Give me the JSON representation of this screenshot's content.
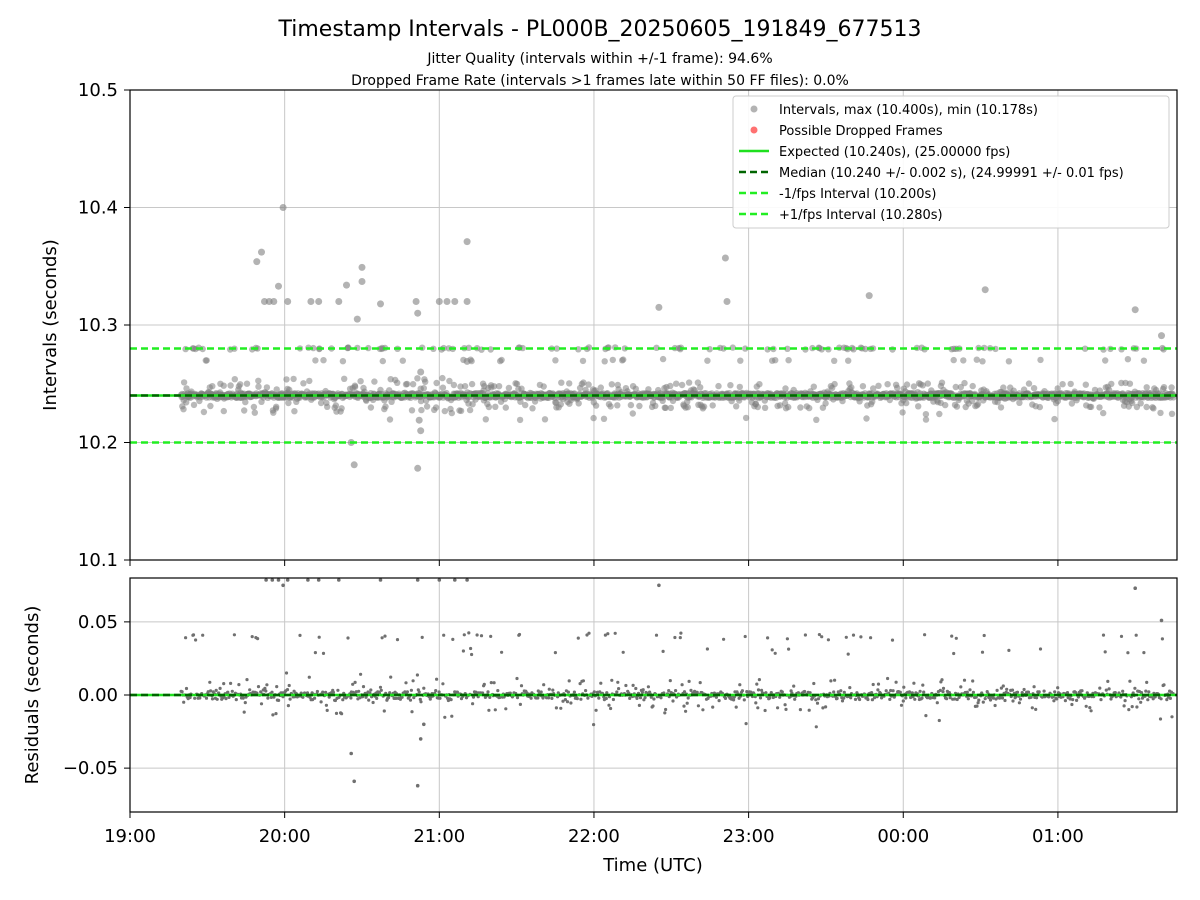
{
  "colors": {
    "intervals": "#808080",
    "dropped": "#ff4d4d",
    "expected": "#1fe01f",
    "median": "#006400",
    "fps_interval": "#22ee22",
    "grid": "#c8c8c8"
  },
  "chart_data": [
    {
      "type": "scatter",
      "title": "Timestamp Intervals - PL000B_20250605_191849_677513",
      "subtitle_lines": [
        "Jitter Quality (intervals within +/-1 frame): 94.6%",
        "Dropped Frame Rate (intervals >1 frames late within 50 FF files): 0.0%"
      ],
      "ylabel": "Intervals (seconds)",
      "ylim": [
        10.1,
        10.5
      ],
      "yticks": [
        "10.1",
        "10.2",
        "10.3",
        "10.4",
        "10.5"
      ],
      "ytick_values": [
        10.1,
        10.2,
        10.3,
        10.4,
        10.5
      ],
      "xlim_hours": [
        19.0,
        25.77
      ],
      "grid": true,
      "legend_position": "top-right",
      "legend": [
        "Intervals, max (10.400s), min (10.178s)",
        "Possible Dropped Frames",
        "Expected (10.240s), (25.00000 fps)",
        "Median (10.240 +/- 0.002 s), (24.99991 +/- 0.01 fps)",
        "-1/fps Interval (10.200s)",
        "+1/fps Interval (10.280s)"
      ],
      "expected": 10.24,
      "median": 10.24,
      "minus_fps": 10.2,
      "plus_fps": 10.28,
      "x_range_hours": [
        19.33,
        25.75
      ],
      "notable_points": [
        {
          "x": 19.82,
          "y": 10.354
        },
        {
          "x": 19.85,
          "y": 10.362
        },
        {
          "x": 19.87,
          "y": 10.32
        },
        {
          "x": 19.9,
          "y": 10.32
        },
        {
          "x": 19.93,
          "y": 10.32
        },
        {
          "x": 19.96,
          "y": 10.333
        },
        {
          "x": 19.99,
          "y": 10.4
        },
        {
          "x": 20.02,
          "y": 10.32
        },
        {
          "x": 20.17,
          "y": 10.32
        },
        {
          "x": 20.22,
          "y": 10.32
        },
        {
          "x": 20.35,
          "y": 10.32
        },
        {
          "x": 20.4,
          "y": 10.334
        },
        {
          "x": 20.47,
          "y": 10.305
        },
        {
          "x": 20.5,
          "y": 10.349
        },
        {
          "x": 20.5,
          "y": 10.337
        },
        {
          "x": 20.62,
          "y": 10.318
        },
        {
          "x": 20.85,
          "y": 10.32
        },
        {
          "x": 20.86,
          "y": 10.31
        },
        {
          "x": 20.45,
          "y": 10.181
        },
        {
          "x": 20.86,
          "y": 10.178
        },
        {
          "x": 20.88,
          "y": 10.21
        },
        {
          "x": 20.87,
          "y": 10.219
        },
        {
          "x": 20.88,
          "y": 10.26
        },
        {
          "x": 20.43,
          "y": 10.2
        },
        {
          "x": 21.0,
          "y": 10.32
        },
        {
          "x": 21.05,
          "y": 10.32
        },
        {
          "x": 21.1,
          "y": 10.32
        },
        {
          "x": 21.18,
          "y": 10.371
        },
        {
          "x": 21.18,
          "y": 10.32
        },
        {
          "x": 21.18,
          "y": 10.269
        },
        {
          "x": 22.42,
          "y": 10.315
        },
        {
          "x": 22.85,
          "y": 10.357
        },
        {
          "x": 22.86,
          "y": 10.32
        },
        {
          "x": 23.78,
          "y": 10.325
        },
        {
          "x": 24.53,
          "y": 10.33
        },
        {
          "x": 25.5,
          "y": 10.313
        },
        {
          "x": 25.67,
          "y": 10.291
        }
      ]
    },
    {
      "type": "scatter",
      "ylabel": "Residuals (seconds)",
      "xlabel": "Time (UTC)",
      "ylim": [
        -0.08,
        0.08
      ],
      "yticks": [
        "−0.05",
        "0.00",
        "0.05"
      ],
      "ytick_values": [
        -0.05,
        0.0,
        0.05
      ],
      "xticks": [
        "19:00",
        "20:00",
        "21:00",
        "22:00",
        "23:00",
        "00:00",
        "01:00"
      ],
      "xtick_values": [
        19,
        20,
        21,
        22,
        23,
        24,
        25
      ],
      "xlim_hours": [
        19.0,
        25.77
      ],
      "grid": true,
      "zero_line": 0.0,
      "x_range_hours": [
        19.33,
        25.75
      ],
      "notable_points": [
        {
          "x": 20.45,
          "y": -0.059
        },
        {
          "x": 20.86,
          "y": -0.062
        },
        {
          "x": 20.43,
          "y": -0.04
        },
        {
          "x": 20.88,
          "y": -0.03
        },
        {
          "x": 20.9,
          "y": -0.02
        },
        {
          "x": 22.42,
          "y": 0.075
        },
        {
          "x": 25.5,
          "y": 0.073
        },
        {
          "x": 25.67,
          "y": 0.051
        },
        {
          "x": 19.99,
          "y": 0.075
        }
      ]
    }
  ]
}
